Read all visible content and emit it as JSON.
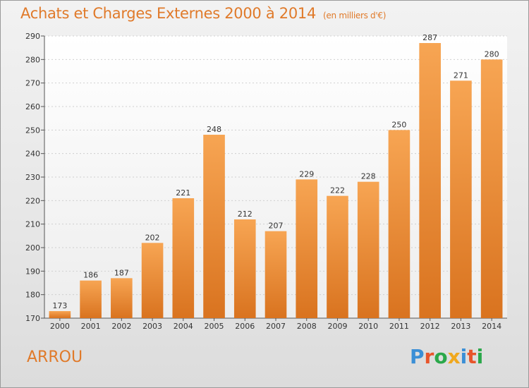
{
  "header": {
    "title": "Achats et Charges Externes 2000 à 2014",
    "subtitle": "(en milliers d'€)"
  },
  "footer": {
    "commune": "ARROU",
    "logo": "Proxiti",
    "logo_colors": [
      "#3b8fd6",
      "#e8552b",
      "#2aa84a",
      "#f0a81e",
      "#3b8fd6",
      "#e8552b",
      "#2aa84a"
    ]
  },
  "chart_data": {
    "type": "bar",
    "categories": [
      "2000",
      "2001",
      "2002",
      "2003",
      "2004",
      "2005",
      "2006",
      "2007",
      "2008",
      "2009",
      "2010",
      "2011",
      "2012",
      "2013",
      "2014"
    ],
    "values": [
      173,
      186,
      187,
      202,
      221,
      248,
      212,
      207,
      229,
      222,
      228,
      250,
      287,
      271,
      280
    ],
    "title": "Achats et Charges Externes 2000 à 2014",
    "xlabel": "",
    "ylabel": "",
    "ylim": [
      170,
      290
    ],
    "yticks": [
      170,
      180,
      190,
      200,
      210,
      220,
      230,
      240,
      250,
      260,
      270,
      280,
      290
    ],
    "grid": true,
    "bar_color_top": "#f7a553",
    "bar_color_bottom": "#d9731f",
    "accent": "#e07a2a"
  }
}
